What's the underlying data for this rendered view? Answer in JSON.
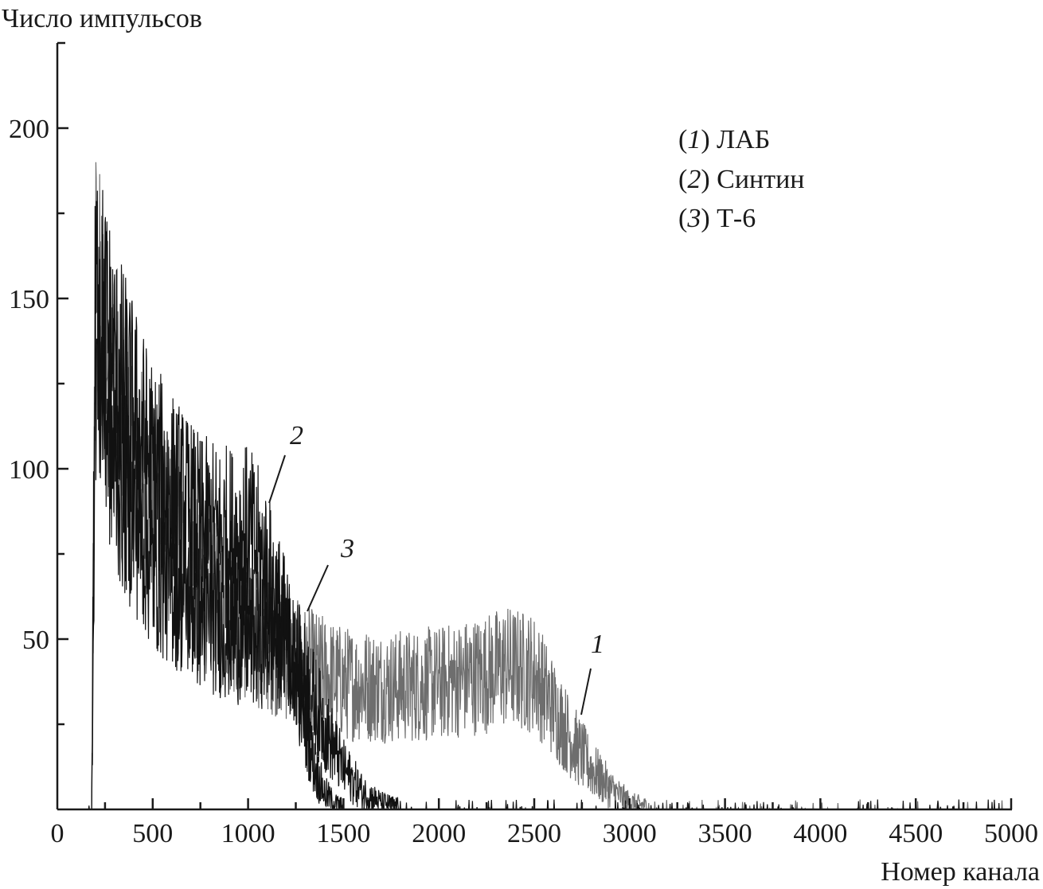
{
  "chart_data": {
    "type": "line",
    "ylabel": "Число импульсов",
    "xlabel": "Номер канала",
    "xlim": [
      0,
      5000
    ],
    "ylim": [
      0,
      225
    ],
    "x_ticks": [
      "0",
      "500",
      "1000",
      "1500",
      "2000",
      "2500",
      "3000",
      "3500",
      "4000",
      "4500",
      "5000"
    ],
    "x_tick_values": [
      0,
      500,
      1000,
      1500,
      2000,
      2500,
      3000,
      3500,
      4000,
      4500,
      5000
    ],
    "y_ticks": [
      "50",
      "100",
      "150",
      "200"
    ],
    "y_tick_values": [
      50,
      100,
      150,
      200
    ],
    "grid": false,
    "legend_position": "top-right",
    "legend": [
      {
        "num": "1",
        "name": "ЛАБ"
      },
      {
        "num": "2",
        "name": "Синтин"
      },
      {
        "num": "3",
        "name": "Т-6"
      }
    ],
    "series": [
      {
        "name": "ЛАБ",
        "label": "1",
        "color": "#6e6e6e",
        "x": [
          150,
          180,
          200,
          300,
          500,
          750,
          1000,
          1250,
          1500,
          1750,
          2000,
          2250,
          2350,
          2500,
          2600,
          2700,
          2800,
          2900,
          3000,
          3100,
          3300,
          5000
        ],
        "y": [
          0,
          0,
          155,
          120,
          90,
          65,
          52,
          43,
          37,
          36,
          37,
          40,
          42,
          40,
          30,
          20,
          12,
          6,
          2,
          1,
          0.5,
          0.3
        ]
      },
      {
        "name": "Синтин",
        "label": "2",
        "color": "#111111",
        "x": [
          150,
          180,
          200,
          300,
          500,
          750,
          900,
          1000,
          1100,
          1200,
          1250,
          1300,
          1350,
          1400,
          1450,
          1500,
          5000
        ],
        "y": [
          0,
          0,
          155,
          130,
          100,
          82,
          80,
          80,
          70,
          52,
          40,
          25,
          12,
          5,
          2,
          1,
          0.3
        ]
      },
      {
        "name": "Т-6",
        "label": "3",
        "color": "#111111",
        "x": [
          150,
          180,
          200,
          300,
          500,
          750,
          1000,
          1200,
          1300,
          1400,
          1500,
          1600,
          1700,
          1800,
          5000
        ],
        "y": [
          0,
          0,
          135,
          100,
          72,
          57,
          50,
          50,
          38,
          24,
          12,
          5,
          2,
          1,
          0.3
        ]
      }
    ]
  }
}
